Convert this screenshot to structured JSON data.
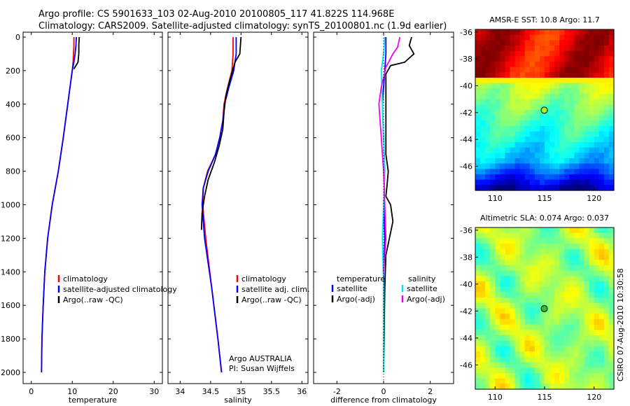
{
  "header": {
    "line1": "Argo profile: CS 5901633_103 02-Aug-2010 20100805_117 41.822S 114.968E",
    "line2": "Climatology: CARS2009. Satellite-adjusted climatology: synTS_20100801.nc (1.9d earlier)"
  },
  "footer": {
    "credit": "CSIRO 07-Aug-2010 10:30:58"
  },
  "colors": {
    "climatology": "#ff0000",
    "satellite": "#0000ff",
    "argo": "#000000",
    "satellite_diff": "#00e5ee",
    "argo_diff_adj": "#ee00ee"
  },
  "chart_data": [
    {
      "id": "temperature",
      "type": "line",
      "xlabel": "temperature",
      "xlim": [
        -2,
        32
      ],
      "ylim": [
        2050,
        0
      ],
      "xticks": [
        0,
        10,
        20,
        30
      ],
      "yticks": [
        0,
        200,
        400,
        600,
        800,
        1000,
        1200,
        1400,
        1600,
        1800,
        2000
      ],
      "legend": [
        "climatology",
        "satellite-adjusted climatology",
        "Argo(..raw -QC)"
      ],
      "series": [
        {
          "name": "climatology",
          "color": "#ff0000",
          "x": [
            10.4,
            10.4,
            10.3,
            10.2,
            10.0,
            8.9,
            7.8,
            6.6,
            5.1,
            4.0,
            3.3,
            2.9,
            2.6,
            2.5
          ],
          "y": [
            0,
            50,
            100,
            150,
            200,
            400,
            600,
            800,
            1000,
            1200,
            1400,
            1600,
            1800,
            2000
          ]
        },
        {
          "name": "satellite-adjusted climatology",
          "color": "#0000ff",
          "x": [
            11.0,
            10.9,
            10.7,
            10.4,
            10.0,
            8.9,
            7.8,
            6.6,
            5.1,
            4.0,
            3.3,
            2.9,
            2.6,
            2.5
          ],
          "y": [
            0,
            50,
            100,
            150,
            200,
            400,
            600,
            800,
            1000,
            1200,
            1400,
            1600,
            1800,
            2000
          ]
        },
        {
          "name": "Argo(..raw -QC)",
          "color": "#000000",
          "x": [
            11.7,
            11.6,
            11.6,
            11.4,
            10.4
          ],
          "y": [
            0,
            50,
            100,
            150,
            190
          ]
        }
      ]
    },
    {
      "id": "salinity",
      "type": "line",
      "xlabel": "salinity",
      "xlim": [
        33.8,
        36.1
      ],
      "ylim": [
        2050,
        0
      ],
      "xticks": [
        34,
        34.5,
        35,
        35.5,
        36
      ],
      "legend": [
        "climatology",
        "satellite adj. clim.",
        "Argo(..raw -QC)"
      ],
      "annotation": [
        "Argo AUSTRALIA",
        "PI: Susan Wijffels"
      ],
      "series": [
        {
          "name": "climatology",
          "color": "#ff0000",
          "x": [
            34.87,
            34.87,
            34.85,
            34.78,
            34.72,
            34.7,
            34.65,
            34.58,
            34.45,
            34.38,
            34.37,
            34.42,
            34.52,
            34.62,
            34.68
          ],
          "y": [
            0,
            100,
            200,
            300,
            400,
            500,
            600,
            700,
            800,
            900,
            1000,
            1200,
            1500,
            1800,
            2000
          ]
        },
        {
          "name": "satellite adj. clim.",
          "color": "#0000ff",
          "x": [
            34.92,
            34.92,
            34.88,
            34.8,
            34.73,
            34.7,
            34.65,
            34.58,
            34.46,
            34.38,
            34.36,
            34.4,
            34.52,
            34.62,
            34.68
          ],
          "y": [
            0,
            100,
            200,
            300,
            400,
            500,
            600,
            700,
            800,
            900,
            1000,
            1200,
            1500,
            1800,
            2000
          ]
        },
        {
          "name": "Argo(..raw -QC)",
          "color": "#000000",
          "x": [
            35.0,
            34.98,
            34.9,
            34.82,
            34.75,
            34.72,
            34.7,
            34.64,
            34.56,
            34.46,
            34.4,
            34.36,
            34.35
          ],
          "y": [
            0,
            100,
            150,
            250,
            350,
            450,
            550,
            650,
            750,
            850,
            950,
            1050,
            1150
          ]
        }
      ]
    },
    {
      "id": "difference",
      "type": "line",
      "xlabel": "difference from climatology",
      "xlim": [
        -3,
        3.0
      ],
      "ylim": [
        2050,
        0
      ],
      "xticks": [
        -2,
        0,
        2
      ],
      "legend_left": [
        "temperature",
        "satellite",
        "Argo(-adj)"
      ],
      "legend_right": [
        "salinity",
        "satellite",
        "Argo(-adj)"
      ],
      "series": [
        {
          "name": "temperature satellite",
          "color": "#0000ff",
          "x": [
            0.1,
            0.1,
            0.05,
            0,
            -0.05,
            0,
            0.05,
            0,
            0.05,
            0,
            0,
            0,
            0
          ],
          "y": [
            0,
            100,
            200,
            300,
            400,
            600,
            800,
            1000,
            1200,
            1400,
            1600,
            1800,
            2000
          ]
        },
        {
          "name": "temperature Argo(-adj)",
          "color": "#000000",
          "x": [
            1.2,
            1.1,
            1.3,
            0.9,
            0.3,
            0.1,
            0.1,
            0.1,
            0.2,
            0.15,
            0.1,
            0.3,
            0.4,
            0.1,
            0.05,
            0.02,
            0.0
          ],
          "y": [
            0,
            50,
            100,
            150,
            170,
            220,
            500,
            700,
            800,
            880,
            950,
            1000,
            1100,
            1300,
            1500,
            1800,
            2000
          ]
        },
        {
          "name": "salinity satellite",
          "color": "#00e5ee",
          "x": [
            0.05,
            0.0,
            -0.1,
            -0.05,
            0.0,
            0.05,
            0.0,
            -0.05,
            0.0,
            0.0,
            0.0
          ],
          "y": [
            0,
            100,
            200,
            400,
            600,
            800,
            1000,
            1200,
            1500,
            1800,
            2000
          ]
        },
        {
          "name": "salinity Argo(-adj)",
          "color": "#ee00ee",
          "x": [
            0.7,
            0.6,
            0.4,
            0.1,
            -0.1,
            -0.2,
            -0.1,
            0.0,
            0.05,
            0.1,
            0.0
          ],
          "y": [
            0,
            60,
            100,
            180,
            300,
            400,
            600,
            800,
            1000,
            1200,
            1400
          ]
        }
      ]
    },
    {
      "id": "sst_map",
      "type": "heatmap",
      "title": "AMSR-E SST: 10.8  Argo: 11.7",
      "xlim": [
        108,
        122
      ],
      "ylim": [
        -47.8,
        -35.8
      ],
      "xticks": [
        110,
        115,
        120
      ],
      "yticks": [
        -36,
        -38,
        -40,
        -42,
        -44,
        -46
      ],
      "marker": {
        "lon": 114.968,
        "lat": -41.822,
        "color": "#aaee33"
      }
    },
    {
      "id": "sla_map",
      "type": "heatmap",
      "title": "Altimetric SLA: 0.074  Argo: 0.037",
      "xlim": [
        108,
        122
      ],
      "ylim": [
        -47.8,
        -35.8
      ],
      "xticks": [
        110,
        115,
        120
      ],
      "yticks": [
        -36,
        -38,
        -40,
        -42,
        -44,
        -46
      ],
      "marker": {
        "lon": 114.968,
        "lat": -41.822,
        "color": "#33bb33"
      }
    }
  ]
}
